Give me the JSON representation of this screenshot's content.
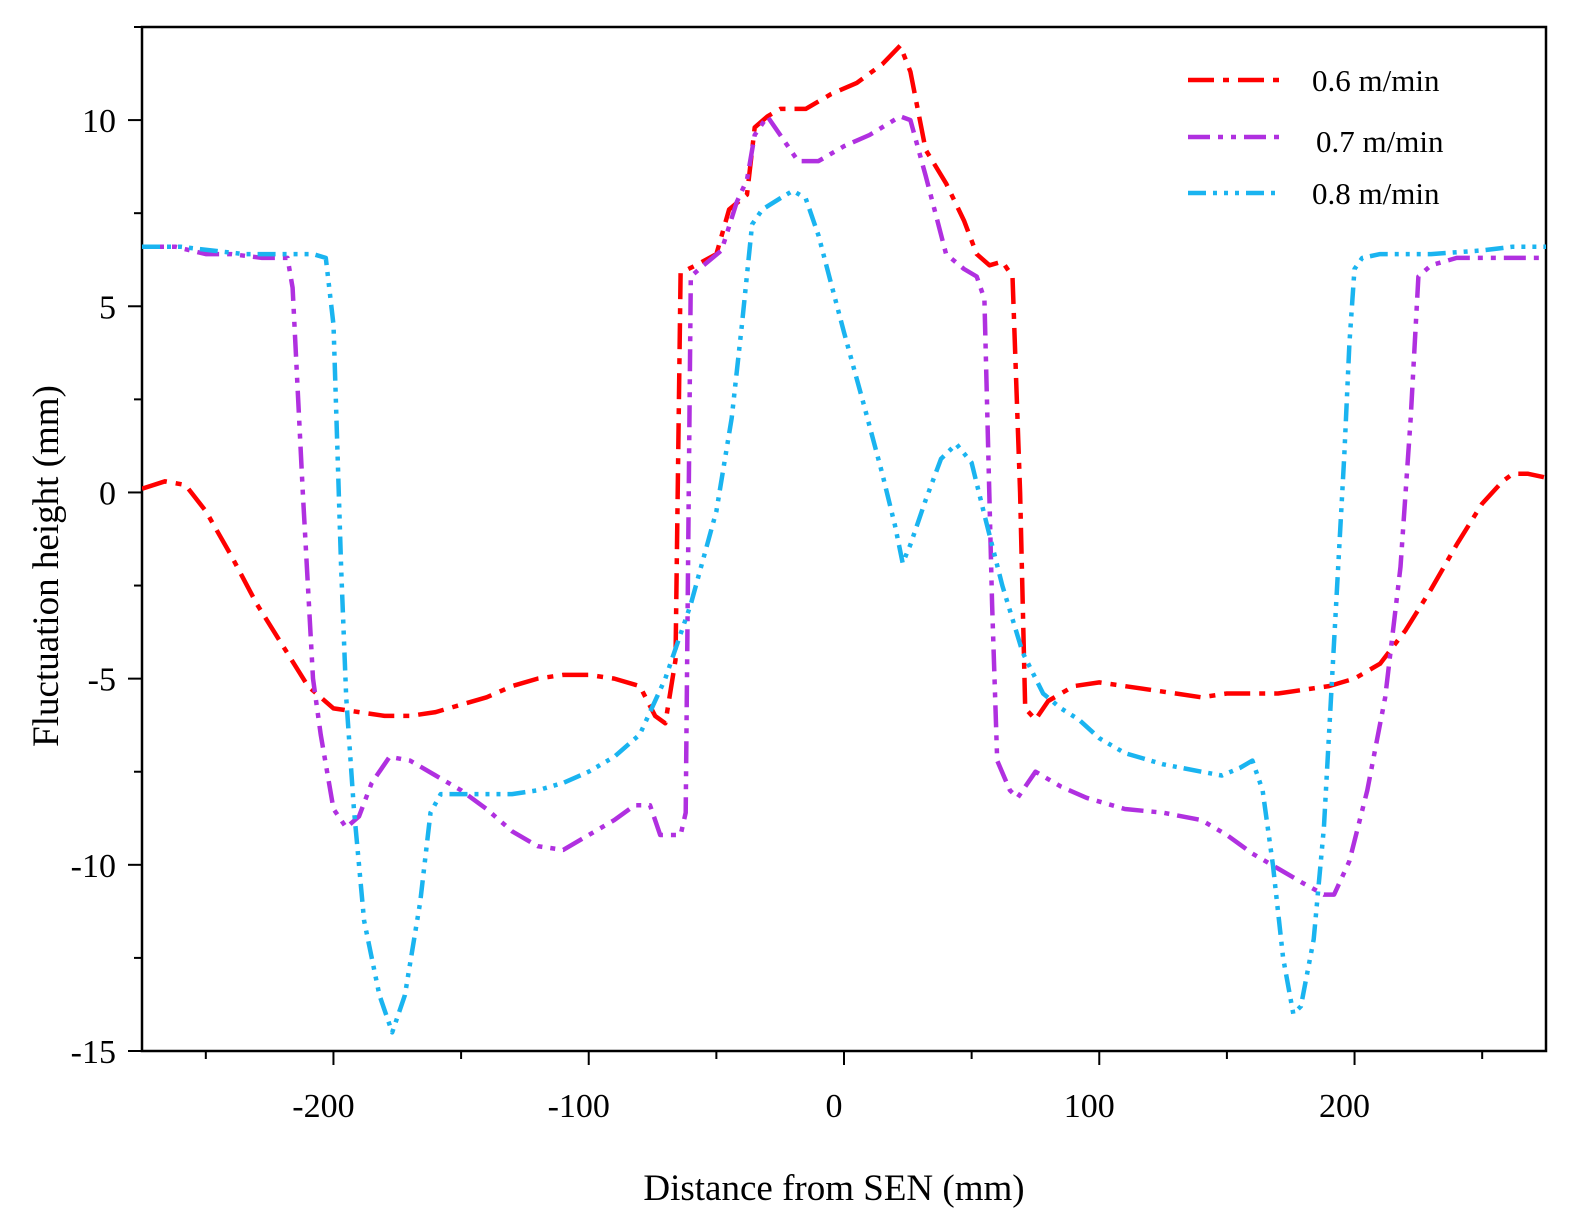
{
  "chart_data": {
    "type": "line",
    "title": "",
    "xlabel": "Distance from SEN (mm)",
    "ylabel": "Fluctuation height (mm)",
    "xlim": [
      -275,
      275
    ],
    "ylim": [
      -15,
      12.5
    ],
    "xticks": [
      -200,
      -100,
      0,
      100,
      200
    ],
    "yticks": [
      10,
      5,
      0,
      -5,
      -10,
      -15
    ],
    "xtick_labels": [
      "-200",
      "-100",
      "0",
      "100",
      "200"
    ],
    "ytick_labels": [
      "10",
      "5",
      "0",
      "-5",
      "-10",
      "-15"
    ],
    "grid": false,
    "legend_position": "top-right",
    "series": [
      {
        "name": "0.6 m/min",
        "color": "#ff0000",
        "dash": "dashdot",
        "points": [
          [
            -275,
            0.1
          ],
          [
            -266,
            0.3
          ],
          [
            -258,
            0.2
          ],
          [
            -250,
            -0.5
          ],
          [
            -240,
            -1.7
          ],
          [
            -230,
            -3.0
          ],
          [
            -220,
            -4.1
          ],
          [
            -210,
            -5.2
          ],
          [
            -200,
            -5.8
          ],
          [
            -190,
            -5.9
          ],
          [
            -180,
            -6.0
          ],
          [
            -170,
            -6.0
          ],
          [
            -160,
            -5.9
          ],
          [
            -150,
            -5.7
          ],
          [
            -140,
            -5.5
          ],
          [
            -130,
            -5.2
          ],
          [
            -120,
            -5.0
          ],
          [
            -110,
            -4.9
          ],
          [
            -100,
            -4.9
          ],
          [
            -90,
            -5.0
          ],
          [
            -80,
            -5.2
          ],
          [
            -74,
            -6.0
          ],
          [
            -70,
            -6.2
          ],
          [
            -66,
            -4.5
          ],
          [
            -64,
            5.9
          ],
          [
            -58,
            6.1
          ],
          [
            -50,
            6.4
          ],
          [
            -45,
            7.6
          ],
          [
            -38,
            8.0
          ],
          [
            -35,
            9.8
          ],
          [
            -30,
            10.1
          ],
          [
            -25,
            10.3
          ],
          [
            -15,
            10.3
          ],
          [
            -5,
            10.7
          ],
          [
            5,
            11.0
          ],
          [
            15,
            11.5
          ],
          [
            22,
            12.0
          ],
          [
            26,
            11.3
          ],
          [
            32,
            9.2
          ],
          [
            40,
            8.3
          ],
          [
            47,
            7.3
          ],
          [
            52,
            6.4
          ],
          [
            57,
            6.1
          ],
          [
            62,
            6.2
          ],
          [
            66,
            5.8
          ],
          [
            69,
            0.0
          ],
          [
            71,
            -5.8
          ],
          [
            75,
            -6.1
          ],
          [
            80,
            -5.6
          ],
          [
            90,
            -5.2
          ],
          [
            100,
            -5.1
          ],
          [
            110,
            -5.2
          ],
          [
            120,
            -5.3
          ],
          [
            130,
            -5.4
          ],
          [
            140,
            -5.5
          ],
          [
            150,
            -5.4
          ],
          [
            160,
            -5.4
          ],
          [
            170,
            -5.4
          ],
          [
            180,
            -5.3
          ],
          [
            190,
            -5.2
          ],
          [
            200,
            -5.0
          ],
          [
            210,
            -4.6
          ],
          [
            220,
            -3.7
          ],
          [
            230,
            -2.6
          ],
          [
            240,
            -1.4
          ],
          [
            250,
            -0.3
          ],
          [
            258,
            0.3
          ],
          [
            262,
            0.5
          ],
          [
            268,
            0.5
          ],
          [
            275,
            0.4
          ]
        ]
      },
      {
        "name": "0.7 m/min",
        "color": "#b030e0",
        "dash": "dashdotdot",
        "points": [
          [
            -275,
            6.6
          ],
          [
            -262,
            6.6
          ],
          [
            -250,
            6.4
          ],
          [
            -240,
            6.4
          ],
          [
            -228,
            6.3
          ],
          [
            -218,
            6.3
          ],
          [
            -216,
            5.5
          ],
          [
            -212,
            0.0
          ],
          [
            -208,
            -5.0
          ],
          [
            -205,
            -6.5
          ],
          [
            -200,
            -8.5
          ],
          [
            -195,
            -9.0
          ],
          [
            -190,
            -8.7
          ],
          [
            -185,
            -7.8
          ],
          [
            -178,
            -7.1
          ],
          [
            -170,
            -7.2
          ],
          [
            -160,
            -7.6
          ],
          [
            -150,
            -8.0
          ],
          [
            -140,
            -8.5
          ],
          [
            -130,
            -9.1
          ],
          [
            -120,
            -9.5
          ],
          [
            -110,
            -9.6
          ],
          [
            -100,
            -9.2
          ],
          [
            -90,
            -8.8
          ],
          [
            -82,
            -8.4
          ],
          [
            -76,
            -8.4
          ],
          [
            -72,
            -9.2
          ],
          [
            -64,
            -9.2
          ],
          [
            -62,
            -8.6
          ],
          [
            -60,
            5.8
          ],
          [
            -55,
            6.1
          ],
          [
            -48,
            6.5
          ],
          [
            -42,
            7.8
          ],
          [
            -38,
            8.4
          ],
          [
            -35,
            9.6
          ],
          [
            -30,
            10.1
          ],
          [
            -25,
            9.6
          ],
          [
            -18,
            8.9
          ],
          [
            -10,
            8.9
          ],
          [
            0,
            9.3
          ],
          [
            10,
            9.6
          ],
          [
            22,
            10.1
          ],
          [
            26,
            10.0
          ],
          [
            32,
            8.5
          ],
          [
            40,
            6.4
          ],
          [
            47,
            6.0
          ],
          [
            52,
            5.8
          ],
          [
            55,
            5.2
          ],
          [
            58,
            -3.0
          ],
          [
            60,
            -7.2
          ],
          [
            65,
            -8.0
          ],
          [
            68,
            -8.2
          ],
          [
            75,
            -7.5
          ],
          [
            85,
            -7.9
          ],
          [
            95,
            -8.2
          ],
          [
            110,
            -8.5
          ],
          [
            125,
            -8.6
          ],
          [
            140,
            -8.8
          ],
          [
            150,
            -9.2
          ],
          [
            160,
            -9.7
          ],
          [
            170,
            -10.1
          ],
          [
            180,
            -10.5
          ],
          [
            188,
            -10.8
          ],
          [
            192,
            -10.8
          ],
          [
            198,
            -9.9
          ],
          [
            205,
            -8.0
          ],
          [
            212,
            -5.5
          ],
          [
            218,
            -2.0
          ],
          [
            222,
            2.0
          ],
          [
            225,
            5.8
          ],
          [
            230,
            6.1
          ],
          [
            240,
            6.3
          ],
          [
            255,
            6.3
          ],
          [
            275,
            6.3
          ]
        ]
      },
      {
        "name": "0.8 m/min",
        "color": "#1ab4f0",
        "dash": "dashdotdotdot",
        "points": [
          [
            -275,
            6.6
          ],
          [
            -260,
            6.6
          ],
          [
            -248,
            6.5
          ],
          [
            -235,
            6.4
          ],
          [
            -220,
            6.4
          ],
          [
            -208,
            6.4
          ],
          [
            -203,
            6.3
          ],
          [
            -200,
            4.5
          ],
          [
            -197,
            -2.0
          ],
          [
            -195,
            -5.5
          ],
          [
            -192,
            -8.5
          ],
          [
            -188,
            -11.5
          ],
          [
            -182,
            -13.5
          ],
          [
            -177,
            -14.5
          ],
          [
            -172,
            -13.5
          ],
          [
            -166,
            -11.0
          ],
          [
            -162,
            -8.6
          ],
          [
            -158,
            -8.1
          ],
          [
            -150,
            -8.1
          ],
          [
            -140,
            -8.1
          ],
          [
            -130,
            -8.1
          ],
          [
            -120,
            -8.0
          ],
          [
            -110,
            -7.8
          ],
          [
            -100,
            -7.5
          ],
          [
            -90,
            -7.1
          ],
          [
            -80,
            -6.5
          ],
          [
            -70,
            -5.0
          ],
          [
            -60,
            -3.0
          ],
          [
            -50,
            -0.5
          ],
          [
            -44,
            2.0
          ],
          [
            -40,
            4.5
          ],
          [
            -36,
            7.2
          ],
          [
            -32,
            7.6
          ],
          [
            -25,
            7.9
          ],
          [
            -20,
            8.1
          ],
          [
            -15,
            7.9
          ],
          [
            -10,
            6.9
          ],
          [
            -5,
            5.6
          ],
          [
            0,
            4.3
          ],
          [
            8,
            2.3
          ],
          [
            15,
            0.5
          ],
          [
            20,
            -0.9
          ],
          [
            23,
            -1.9
          ],
          [
            26,
            -1.4
          ],
          [
            32,
            -0.2
          ],
          [
            38,
            0.9
          ],
          [
            44,
            1.3
          ],
          [
            50,
            0.8
          ],
          [
            55,
            -0.6
          ],
          [
            62,
            -2.5
          ],
          [
            70,
            -4.3
          ],
          [
            78,
            -5.4
          ],
          [
            85,
            -5.8
          ],
          [
            92,
            -6.1
          ],
          [
            100,
            -6.6
          ],
          [
            110,
            -7.0
          ],
          [
            125,
            -7.3
          ],
          [
            140,
            -7.5
          ],
          [
            148,
            -7.6
          ],
          [
            155,
            -7.4
          ],
          [
            160,
            -7.2
          ],
          [
            164,
            -8.0
          ],
          [
            168,
            -10.0
          ],
          [
            172,
            -12.5
          ],
          [
            176,
            -14.0
          ],
          [
            179,
            -13.8
          ],
          [
            184,
            -12.0
          ],
          [
            188,
            -9.0
          ],
          [
            192,
            -4.0
          ],
          [
            196,
            1.0
          ],
          [
            198,
            4.0
          ],
          [
            200,
            6.0
          ],
          [
            203,
            6.3
          ],
          [
            210,
            6.4
          ],
          [
            230,
            6.4
          ],
          [
            250,
            6.5
          ],
          [
            262,
            6.6
          ],
          [
            275,
            6.6
          ]
        ]
      }
    ]
  }
}
